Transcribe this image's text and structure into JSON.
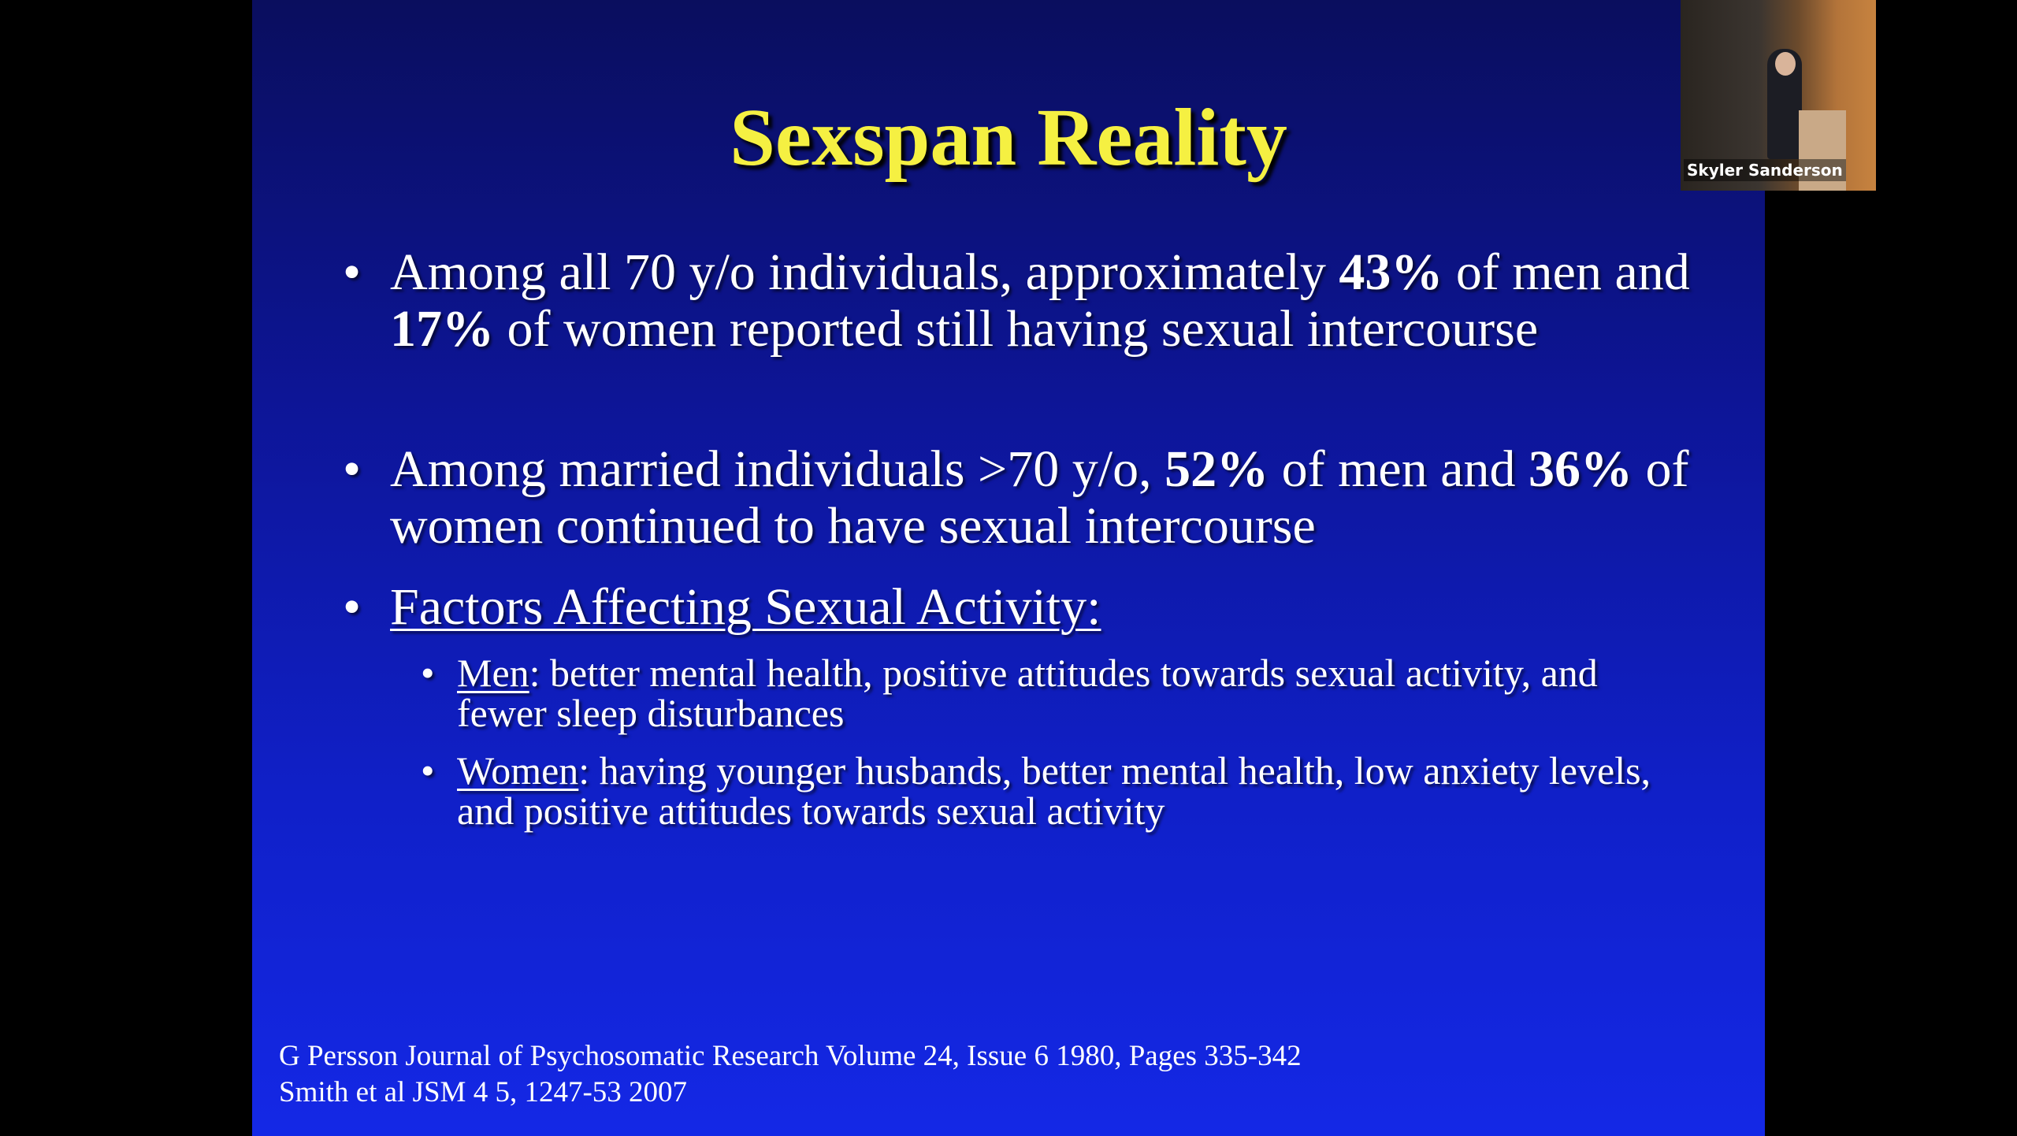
{
  "slide": {
    "title": "Sexspan Reality",
    "bullets": [
      {
        "runs": [
          {
            "text": "Among all 70 y/o individuals, approximately ",
            "style": "normal"
          },
          {
            "text": "43%",
            "style": "bold"
          },
          {
            "text": " of men and ",
            "style": "normal"
          },
          {
            "text": "17%",
            "style": "bold"
          },
          {
            "text": " of women reported still having sexual intercourse",
            "style": "normal"
          }
        ]
      },
      {
        "runs": [
          {
            "text": "Among married individuals >70 y/o, ",
            "style": "normal"
          },
          {
            "text": "52%",
            "style": "bold"
          },
          {
            "text": " of men and ",
            "style": "normal"
          },
          {
            "text": "36%",
            "style": "bold"
          },
          {
            "text": " of women continued to have sexual intercourse",
            "style": "normal"
          }
        ]
      },
      {
        "runs": [
          {
            "text": "Factors Affecting Sexual Activity:",
            "style": "underline"
          }
        ],
        "subbullets": [
          {
            "runs": [
              {
                "text": "Men",
                "style": "underline"
              },
              {
                "text": ": better mental health, positive attitudes towards sexual activity, and fewer sleep disturbances",
                "style": "normal"
              }
            ]
          },
          {
            "runs": [
              {
                "text": "Women",
                "style": "underline"
              },
              {
                "text": ": having younger husbands, better mental health, low anxiety levels, and positive attitudes towards sexual activity",
                "style": "normal"
              }
            ]
          }
        ]
      }
    ],
    "references": [
      "G Persson  Journal of Psychosomatic Research Volume 24, Issue 6 1980, Pages 335-342",
      "Smith et al JSM 4 5, 1247-53 2007"
    ]
  },
  "video": {
    "name": "Skyler Sanderson"
  }
}
